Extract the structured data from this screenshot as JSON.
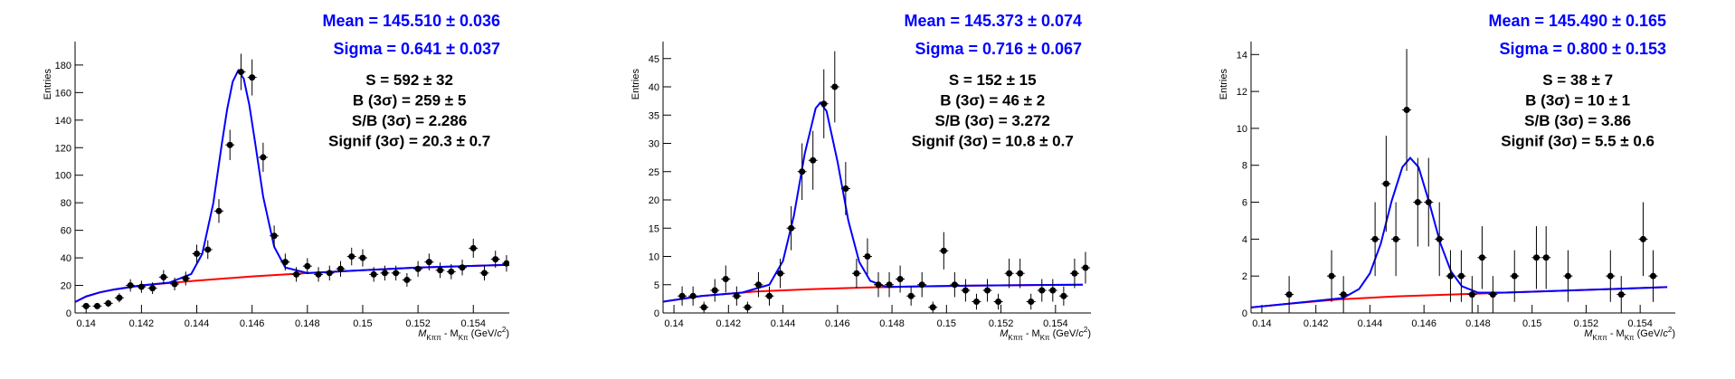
{
  "chart_data": [
    {
      "type": "histfit",
      "headers": [
        "Mean = 145.510 ± 0.036",
        "Sigma = 0.641 ± 0.037"
      ],
      "annotations": [
        "S = 592 ± 32",
        "B (3σ) = 259 ± 5",
        "S/B (3σ) = 2.286",
        "Signif (3σ) = 20.3 ± 0.7"
      ],
      "y_label": "Entries",
      "x_label_parts": [
        "M",
        "Kππ",
        " - M",
        "Kπ",
        " (GeV/",
        "c",
        "2",
        ")"
      ],
      "xlim": [
        0.1396,
        0.1553
      ],
      "xticks": [
        0.14,
        0.142,
        0.144,
        0.146,
        0.148,
        0.15,
        0.152,
        0.154
      ],
      "ylim": [
        0,
        197
      ],
      "yticks": [
        0,
        20,
        40,
        60,
        80,
        100,
        120,
        140,
        160,
        180
      ],
      "series": [
        {
          "style": "points",
          "color": "#000000",
          "x": [
            0.14,
            0.1404,
            0.1408,
            0.1412,
            0.1416,
            0.142,
            0.1424,
            0.1428,
            0.1432,
            0.1436,
            0.144,
            0.1444,
            0.1448,
            0.1452,
            0.1456,
            0.146,
            0.1464,
            0.1468,
            0.1472,
            0.1476,
            0.148,
            0.1484,
            0.1488,
            0.1492,
            0.1496,
            0.15,
            0.1504,
            0.1508,
            0.1512,
            0.1516,
            0.152,
            0.1524,
            0.1528,
            0.1532,
            0.1536,
            0.154,
            0.1544,
            0.1548,
            0.1552
          ],
          "values": [
            5,
            5,
            7,
            11,
            20,
            19,
            18,
            26,
            21,
            25,
            43,
            46,
            74,
            122,
            175,
            171,
            113,
            56,
            37,
            28,
            34,
            28,
            29,
            32,
            41,
            40,
            28,
            29,
            29,
            24,
            32,
            37,
            31,
            30,
            33,
            47,
            29,
            39,
            36
          ],
          "errors": [
            2.2,
            2.2,
            2.6,
            3.3,
            4.5,
            4.4,
            4.2,
            5.1,
            4.6,
            5,
            6.6,
            6.8,
            8.6,
            11,
            13.2,
            13.1,
            10.6,
            7.5,
            6.1,
            5.3,
            5.8,
            5.3,
            5.4,
            5.7,
            6.4,
            6.3,
            5.3,
            5.4,
            5.4,
            4.9,
            5.7,
            6.1,
            5.6,
            5.5,
            5.7,
            6.9,
            5.4,
            6.2,
            6
          ]
        },
        {
          "style": "line",
          "color": "#ff0000",
          "x": [
            0.1396,
            0.14,
            0.1405,
            0.141,
            0.142,
            0.144,
            0.146,
            0.148,
            0.15,
            0.152,
            0.1553
          ],
          "values": [
            8,
            12,
            15,
            17,
            20,
            23.5,
            26.5,
            29,
            31,
            33,
            35
          ]
        },
        {
          "style": "line",
          "color": "#0000ff",
          "x": [
            0.1396,
            0.14,
            0.1405,
            0.141,
            0.142,
            0.143,
            0.1438,
            0.1442,
            0.1446,
            0.1449,
            0.1451,
            0.1453,
            0.1455,
            0.1457,
            0.1459,
            0.1461,
            0.1464,
            0.1468,
            0.1472,
            0.148,
            0.15,
            0.152,
            0.1553
          ],
          "values": [
            8,
            12,
            15,
            17,
            20,
            22,
            28.3,
            43,
            80,
            122,
            148,
            168,
            176,
            170,
            151,
            125,
            84.5,
            48,
            33,
            29,
            31,
            33,
            35
          ]
        }
      ]
    },
    {
      "type": "histfit",
      "headers": [
        "Mean = 145.373 ± 0.074",
        "Sigma = 0.716 ± 0.067"
      ],
      "annotations": [
        "S = 152 ± 15",
        "B (3σ) = 46 ± 2",
        "S/B (3σ) = 3.272",
        "Signif (3σ) = 10.8 ± 0.7"
      ],
      "y_label": "Entries",
      "x_label_parts": [
        "M",
        "Kππ",
        " - M",
        "Kπ",
        " (GeV/",
        "c",
        "2",
        ")"
      ],
      "xlim": [
        0.1396,
        0.1553
      ],
      "xticks": [
        0.14,
        0.142,
        0.144,
        0.146,
        0.148,
        0.15,
        0.152,
        0.154
      ],
      "ylim": [
        0,
        48
      ],
      "yticks": [
        0,
        5,
        10,
        15,
        20,
        25,
        30,
        35,
        40,
        45
      ],
      "series": [
        {
          "style": "points",
          "color": "#000000",
          "x": [
            0.1403,
            0.1407,
            0.1411,
            0.1415,
            0.1419,
            0.1423,
            0.1427,
            0.1431,
            0.1435,
            0.1439,
            0.1443,
            0.1447,
            0.1451,
            0.1455,
            0.1459,
            0.1463,
            0.1467,
            0.1471,
            0.1475,
            0.1479,
            0.1483,
            0.1487,
            0.1491,
            0.1495,
            0.1499,
            0.1503,
            0.1507,
            0.1511,
            0.1515,
            0.1519,
            0.1523,
            0.1527,
            0.1531,
            0.1535,
            0.1539,
            0.1543,
            0.1547,
            0.1551
          ],
          "values": [
            3,
            3,
            1,
            4,
            6,
            3,
            1,
            5,
            3,
            7,
            15,
            25,
            27,
            37,
            40,
            22,
            7,
            10,
            5,
            5,
            6,
            3,
            5,
            1,
            11,
            5,
            4,
            2,
            4,
            2,
            7,
            7,
            2,
            4,
            4,
            3,
            7,
            8
          ],
          "errors": [
            1.7,
            1.7,
            1,
            2,
            2.4,
            1.7,
            1,
            2.2,
            1.7,
            2.6,
            3.9,
            5,
            5.2,
            6.1,
            6.3,
            4.7,
            2.6,
            3.2,
            2.2,
            2.2,
            2.4,
            1.7,
            2.2,
            1,
            3.3,
            2.2,
            2,
            1.4,
            2,
            1.4,
            2.6,
            2.6,
            1.4,
            2,
            2,
            1.7,
            2.6,
            2.8
          ]
        },
        {
          "style": "line",
          "color": "#ff0000",
          "x": [
            0.1396,
            0.141,
            0.143,
            0.145,
            0.147,
            0.149,
            0.151,
            0.155
          ],
          "values": [
            2,
            3,
            3.8,
            4.2,
            4.5,
            4.7,
            4.85,
            5
          ]
        },
        {
          "style": "line",
          "color": "#0000ff",
          "x": [
            0.1396,
            0.141,
            0.1425,
            0.1435,
            0.144,
            0.1444,
            0.1448,
            0.1452,
            0.14537,
            0.1456,
            0.146,
            0.1464,
            0.1468,
            0.1472,
            0.1478,
            0.149,
            0.151,
            0.155
          ],
          "values": [
            2,
            3,
            3.6,
            5,
            9.2,
            17.2,
            28.2,
            36.2,
            37.2,
            35.7,
            26.8,
            16.3,
            9,
            5.7,
            4.6,
            4.7,
            4.85,
            5
          ]
        }
      ]
    },
    {
      "type": "histfit",
      "headers": [
        "Mean = 145.490 ± 0.165",
        "Sigma = 0.800 ± 0.153"
      ],
      "annotations": [
        "S = 38 ± 7",
        "B (3σ) = 10 ± 1",
        "S/B (3σ) = 3.86",
        "Signif (3σ) = 5.5 ± 0.6"
      ],
      "y_label": "Entries",
      "x_label_parts": [
        "M",
        "Kππ",
        " - M",
        "Kπ",
        " (GeV/",
        "c",
        "2",
        ")"
      ],
      "xlim": [
        0.1396,
        0.1553
      ],
      "xticks": [
        0.14,
        0.142,
        0.144,
        0.146,
        0.148,
        0.15,
        0.152,
        0.154
      ],
      "ylim": [
        0,
        14.7
      ],
      "yticks": [
        0,
        2,
        4,
        6,
        8,
        10,
        12,
        14
      ],
      "series": [
        {
          "style": "points",
          "color": "#000000",
          "x": [
            0.14101,
            0.14258,
            0.14302,
            0.14419,
            0.1446,
            0.14496,
            0.14536,
            0.14577,
            0.14617,
            0.14657,
            0.14698,
            0.14738,
            0.14778,
            0.14815,
            0.14855,
            0.14935,
            0.15016,
            0.15052,
            0.15133,
            0.1529,
            0.1533,
            0.15411,
            0.15448
          ],
          "values": [
            1,
            2,
            1,
            4,
            7,
            4,
            11,
            6,
            6,
            4,
            2,
            2,
            1,
            3,
            1,
            2,
            3,
            3,
            2,
            2,
            1,
            4,
            2
          ],
          "errors": [
            1,
            1.4,
            1,
            2,
            2.6,
            2,
            3.3,
            2.4,
            2.4,
            2,
            1.4,
            1.4,
            1,
            1.7,
            1,
            1.4,
            1.7,
            1.7,
            1.4,
            1.4,
            1,
            2,
            1.4
          ]
        },
        {
          "style": "line",
          "color": "#ff0000",
          "x": [
            0.1396,
            0.141,
            0.143,
            0.145,
            0.147,
            0.149,
            0.151,
            0.153,
            0.155
          ],
          "values": [
            0.3,
            0.5,
            0.75,
            0.9,
            1,
            1.1,
            1.2,
            1.3,
            1.4
          ]
        },
        {
          "style": "line",
          "color": "#0000ff",
          "x": [
            0.1396,
            0.141,
            0.143,
            0.1436,
            0.144,
            0.1444,
            0.1448,
            0.1452,
            0.14549,
            0.1458,
            0.1462,
            0.1466,
            0.147,
            0.1474,
            0.148,
            0.149,
            0.151,
            0.153,
            0.155
          ],
          "values": [
            0.3,
            0.5,
            0.81,
            1.3,
            2.15,
            3.75,
            6.05,
            7.9,
            8.4,
            7.9,
            5.95,
            3.8,
            2.25,
            1.45,
            1.1,
            1.1,
            1.2,
            1.3,
            1.4
          ]
        }
      ]
    }
  ]
}
